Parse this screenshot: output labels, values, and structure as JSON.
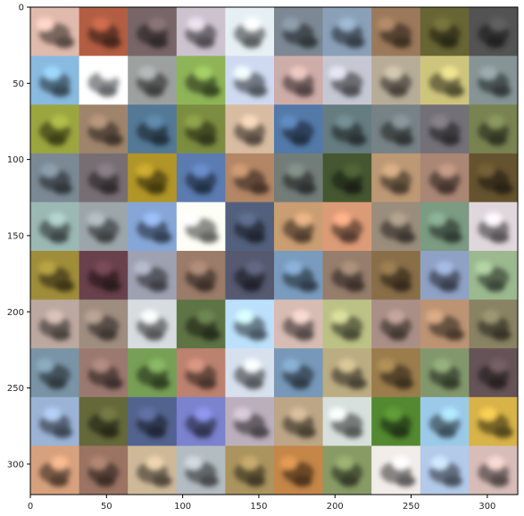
{
  "figure": {
    "x_ticks": [
      "0",
      "50",
      "100",
      "150",
      "200",
      "250",
      "300"
    ],
    "y_ticks": [
      "0",
      "50",
      "100",
      "150",
      "200",
      "250",
      "300"
    ],
    "x_tick_values": [
      0,
      50,
      100,
      150,
      200,
      250,
      300
    ],
    "y_tick_values": [
      0,
      50,
      100,
      150,
      200,
      250,
      300
    ],
    "xlim": [
      0,
      320
    ],
    "ylim": [
      320,
      0
    ],
    "grid": {
      "rows": 10,
      "cols": 10,
      "tile_size": 32
    }
  },
  "tiles": [
    [
      "#c8a69a",
      "#a0543c",
      "#6b5a5c",
      "#b6aeb9",
      "#cdd6da",
      "#6f7a84",
      "#7a8fa4",
      "#8a6c50",
      "#5d5a2e",
      "#4a4a4a"
    ],
    [
      "#7aa6c8",
      "#e8eaef",
      "#8b8f8e",
      "#7fa14e",
      "#b9c3d6",
      "#b89a96",
      "#b0b2bc",
      "#a39a88",
      "#b8b070",
      "#788486"
    ],
    [
      "#8a9438",
      "#8e7660",
      "#4a6c86",
      "#6e7e3a",
      "#c0a890",
      "#4a6c96",
      "#5a6f73",
      "#6a7478",
      "#68646a",
      "#6b7548"
    ],
    [
      "#6d7a84",
      "#6a6268",
      "#9e8524",
      "#516e9e",
      "#a0785a",
      "#66706c",
      "#3e4e2c",
      "#a88868",
      "#987868",
      "#5a4a2a"
    ],
    [
      "#8aa4a0",
      "#8b9498",
      "#7894c0",
      "#e2e4dc",
      "#4a5670",
      "#b48c66",
      "#c48a6a",
      "#8a7e6e",
      "#6e8a74",
      "#c8c0c4"
    ],
    [
      "#8e7e34",
      "#5e3a44",
      "#8c909e",
      "#8a6e5e",
      "#4c5064",
      "#6c8aaa",
      "#867060",
      "#7a6240",
      "#8090b0",
      "#8aa480"
    ],
    [
      "#a8968e",
      "#8e7e72",
      "#c0c4c8",
      "#54683e",
      "#a8c8e0",
      "#c0a8a0",
      "#a8ac78",
      "#988078",
      "#a88468",
      "#7a7458"
    ],
    [
      "#6c8494",
      "#8a6c64",
      "#6a8e4c",
      "#a87464",
      "#c0c8d4",
      "#6a88a4",
      "#a89a74",
      "#8a7044",
      "#748860",
      "#5a4a4e"
    ],
    [
      "#8aa0be",
      "#5a5e34",
      "#4a5880",
      "#6e74b8",
      "#a89ca8",
      "#a89478",
      "#c0c8c4",
      "#4a7a2c",
      "#8ab4d0",
      "#c0a040"
    ],
    [
      "#c09070",
      "#8a6858",
      "#b8a488",
      "#a0a8ac",
      "#9a8454",
      "#b07840",
      "#7a8a5a",
      "#d8d4d0",
      "#a0b4d0",
      "#c0a8a4"
    ]
  ]
}
